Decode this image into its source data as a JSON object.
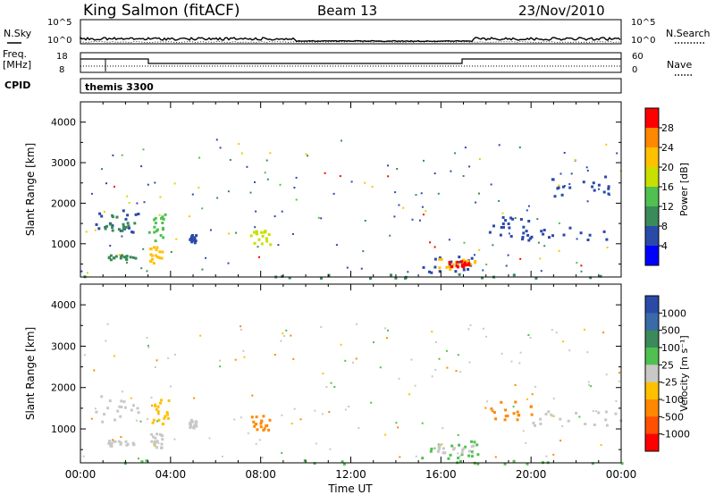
{
  "header": {
    "station": "King Salmon (fitACF)",
    "beam": "Beam 13",
    "date": "23/Nov/2010"
  },
  "status_panels": {
    "nsky_label": "N.Sky",
    "nsearch_label": "N.Search",
    "nsky_ticks": [
      "10^5",
      "10^0"
    ],
    "nsky_ticks_right": [
      "10^5",
      "10^0"
    ],
    "freq_label": [
      "Freq.",
      "[MHz]"
    ],
    "freq_ticks": [
      "18",
      "8"
    ],
    "nave_label": "Nave",
    "nave_ticks": [
      "60",
      "0"
    ],
    "cpid_label": "CPID",
    "cpid_value": "themis 3300"
  },
  "chart_data": [
    {
      "type": "scatter",
      "name": "power",
      "ylabel": "Slant Range [km]",
      "ylim": [
        180,
        4500
      ],
      "yticks": [
        "1000",
        "2000",
        "3000",
        "4000"
      ],
      "colorbar_label": "Power [dB]",
      "colorbar_ticks": [
        "28",
        "24",
        "20",
        "16",
        "12",
        "8",
        "4"
      ],
      "colorbar_colors": [
        "#ff0000",
        "#ff8800",
        "#ffc000",
        "#c8e000",
        "#50c050",
        "#3a8a5a",
        "#2a4aa8",
        "#0000ff"
      ],
      "regions": [
        {
          "t0": 0.4,
          "t1": 2.7,
          "r0": 1200,
          "r1": 1850,
          "color": "#2a4aa8"
        },
        {
          "t0": 0.6,
          "t1": 2.4,
          "r0": 1350,
          "r1": 1750,
          "color": "#3a8a5a"
        },
        {
          "t0": 1.2,
          "t1": 2.4,
          "r0": 600,
          "r1": 750,
          "color": "#3a8a5a"
        },
        {
          "t0": 3.0,
          "t1": 3.9,
          "r0": 1100,
          "r1": 1750,
          "color": "#50c050"
        },
        {
          "t0": 3.0,
          "t1": 3.6,
          "r0": 550,
          "r1": 950,
          "color": "#ffc000"
        },
        {
          "t0": 4.8,
          "t1": 5.1,
          "r0": 1050,
          "r1": 1250,
          "color": "#2a4aa8"
        },
        {
          "t0": 7.5,
          "t1": 8.4,
          "r0": 1000,
          "r1": 1350,
          "color": "#c8e000"
        },
        {
          "t0": 15.0,
          "t1": 17.8,
          "r0": 300,
          "r1": 750,
          "color": "#2a4aa8"
        },
        {
          "t0": 15.8,
          "t1": 17.5,
          "r0": 400,
          "r1": 650,
          "color": "#ffc000"
        },
        {
          "t0": 16.3,
          "t1": 17.2,
          "r0": 450,
          "r1": 600,
          "color": "#ff0000"
        },
        {
          "t0": 19.5,
          "t1": 24.0,
          "r0": 1100,
          "r1": 1450,
          "color": "#2a4aa8"
        },
        {
          "t0": 18.0,
          "t1": 20.0,
          "r0": 1200,
          "r1": 1700,
          "color": "#2a4aa8"
        },
        {
          "t0": 20.5,
          "t1": 23.5,
          "r0": 2200,
          "r1": 2700,
          "color": "#2a4aa8"
        },
        {
          "t0": 0.0,
          "t1": 24.0,
          "r0": 180,
          "r1": 280,
          "color": "#3a8a5a"
        }
      ]
    },
    {
      "type": "scatter",
      "name": "velocity",
      "ylabel": "Slant Range [km]",
      "ylim": [
        180,
        4500
      ],
      "yticks": [
        "1000",
        "2000",
        "3000",
        "4000"
      ],
      "colorbar_label": "Velocity [m s⁻¹]",
      "colorbar_ticks": [
        "1000",
        "500",
        "100",
        "25",
        "-25",
        "-100",
        "-500",
        "-1000"
      ],
      "colorbar_colors": [
        "#2a4aa8",
        "#3a6aa8",
        "#3a8a5a",
        "#50c050",
        "#c8c8c8",
        "#ffc000",
        "#ff8800",
        "#ff5000",
        "#ff0000"
      ],
      "regions": [
        {
          "t0": 0.4,
          "t1": 2.7,
          "r0": 1200,
          "r1": 1850,
          "color": "#c8c8c8"
        },
        {
          "t0": 1.2,
          "t1": 2.4,
          "r0": 600,
          "r1": 750,
          "color": "#c8c8c8"
        },
        {
          "t0": 3.0,
          "t1": 3.9,
          "r0": 1100,
          "r1": 1750,
          "color": "#ffc000"
        },
        {
          "t0": 3.0,
          "t1": 3.6,
          "r0": 550,
          "r1": 950,
          "color": "#c8c8c8"
        },
        {
          "t0": 4.8,
          "t1": 5.1,
          "r0": 1050,
          "r1": 1250,
          "color": "#c8c8c8"
        },
        {
          "t0": 7.5,
          "t1": 8.4,
          "r0": 1000,
          "r1": 1350,
          "color": "#ff8800"
        },
        {
          "t0": 15.0,
          "t1": 17.8,
          "r0": 300,
          "r1": 750,
          "color": "#50c050"
        },
        {
          "t0": 15.8,
          "t1": 17.5,
          "r0": 450,
          "r1": 650,
          "color": "#c8c8c8"
        },
        {
          "t0": 19.5,
          "t1": 24.0,
          "r0": 1100,
          "r1": 1450,
          "color": "#c8c8c8"
        },
        {
          "t0": 18.0,
          "t1": 20.0,
          "r0": 1200,
          "r1": 1700,
          "color": "#ff8800"
        },
        {
          "t0": 0.0,
          "t1": 24.0,
          "r0": 180,
          "r1": 280,
          "color": "#50c050"
        }
      ]
    }
  ],
  "xaxis": {
    "label": "Time UT",
    "ticks": [
      "00:00",
      "04:00",
      "08:00",
      "12:00",
      "16:00",
      "20:00",
      "00:00"
    ]
  }
}
